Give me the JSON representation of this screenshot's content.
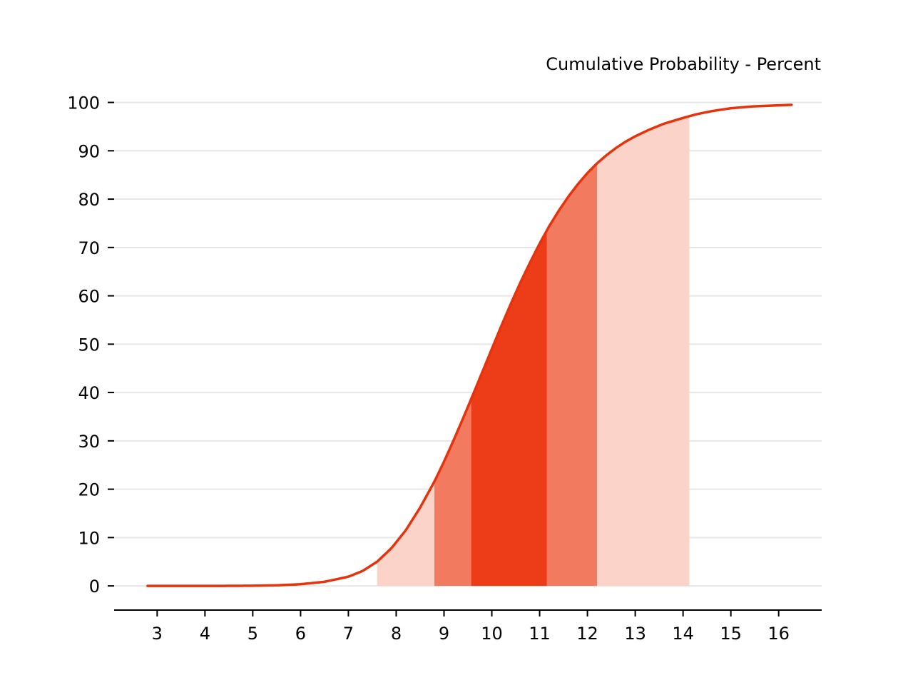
{
  "chart_data": {
    "type": "area",
    "title": "Cumulative Probability - Percent",
    "xlabel": "",
    "ylabel": "",
    "xlim": [
      2.1,
      16.9
    ],
    "ylim": [
      -5,
      102
    ],
    "x_ticks": [
      3,
      4,
      5,
      6,
      7,
      8,
      9,
      10,
      11,
      12,
      13,
      14,
      15,
      16
    ],
    "y_ticks": [
      0,
      10,
      20,
      30,
      40,
      50,
      60,
      70,
      80,
      90,
      100
    ],
    "grid": "horizontal",
    "curve_color": "#e8320c",
    "curve": {
      "x": [
        2.8,
        3.5,
        4.0,
        4.5,
        5.0,
        5.5,
        6.0,
        6.5,
        7.0,
        7.3,
        7.6,
        7.9,
        8.2,
        8.5,
        8.8,
        9.0,
        9.2,
        9.4,
        9.6,
        9.8,
        10.0,
        10.2,
        10.4,
        10.6,
        10.8,
        11.0,
        11.2,
        11.4,
        11.6,
        11.8,
        12.0,
        12.2,
        12.4,
        12.6,
        12.8,
        13.0,
        13.3,
        13.6,
        14.0,
        14.3,
        14.6,
        15.0,
        15.5,
        16.27
      ],
      "y": [
        0.0,
        0.0,
        0.0,
        0.01,
        0.04,
        0.12,
        0.35,
        0.85,
        1.9,
        3.1,
        5.0,
        7.8,
        11.5,
        16.2,
        21.6,
        25.7,
        30.1,
        34.7,
        39.4,
        44.2,
        49.0,
        53.8,
        58.4,
        62.8,
        66.9,
        70.8,
        74.4,
        77.6,
        80.5,
        83.1,
        85.4,
        87.4,
        89.1,
        90.6,
        91.9,
        93.0,
        94.4,
        95.6,
        96.8,
        97.6,
        98.2,
        98.8,
        99.2,
        99.5
      ]
    },
    "bands": [
      {
        "x_start": 7.6,
        "x_end": 14.13,
        "color": "#fbd3c9"
      },
      {
        "x_start": 8.8,
        "x_end": 12.2,
        "color": "#f17a5f"
      },
      {
        "x_start": 9.57,
        "x_end": 11.15,
        "color": "#ec3d18"
      }
    ]
  }
}
